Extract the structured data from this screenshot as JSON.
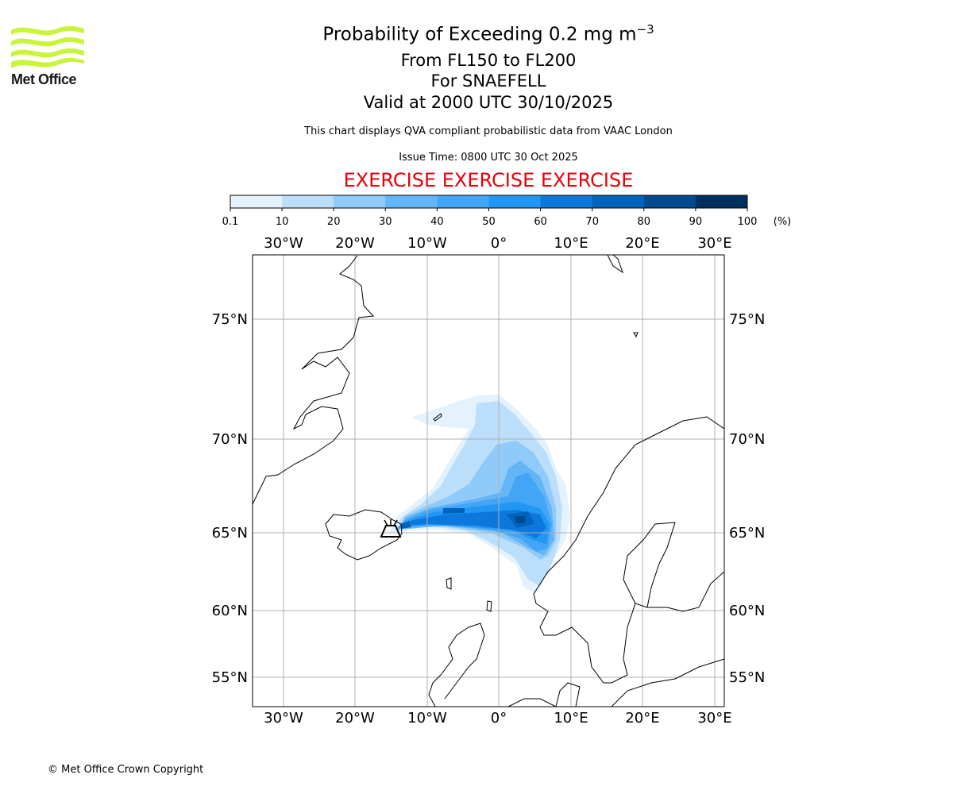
{
  "logo": {
    "text": "Met Office",
    "color": "#c8f53a"
  },
  "title": {
    "main": "Probability of Exceeding 0.2 mg m",
    "main_sup": "−3",
    "levels": "From FL150 to FL200",
    "volcano": "For SNAEFELL",
    "valid": "Valid at 2000 UTC 30/10/2025",
    "note": "This chart displays QVA compliant probabilistic data from VAAC London",
    "issue": "Issue Time: 0800 UTC 30 Oct 2025",
    "exercise": "EXERCISE EXERCISE EXERCISE"
  },
  "colorbar": {
    "ticks": [
      "0.1",
      "10",
      "20",
      "30",
      "40",
      "50",
      "60",
      "70",
      "80",
      "90",
      "100"
    ],
    "unit": "(%)",
    "colors": [
      "#e3f2fd",
      "#bbdefb",
      "#90caf9",
      "#64b5f6",
      "#42a5f5",
      "#2196f3",
      "#0d78dc",
      "#0064bf",
      "#004a8f",
      "#00305e"
    ]
  },
  "map": {
    "lon_labels": [
      "30°W",
      "20°W",
      "10°W",
      "0°",
      "10°E",
      "20°E",
      "30°E"
    ],
    "lat_labels": [
      "75°N",
      "70°N",
      "65°N",
      "60°N",
      "55°N"
    ],
    "gridlines": true,
    "volcano_icon": "volcano-icon"
  },
  "footer": {
    "copyright": "© Met Office Crown Copyright"
  }
}
